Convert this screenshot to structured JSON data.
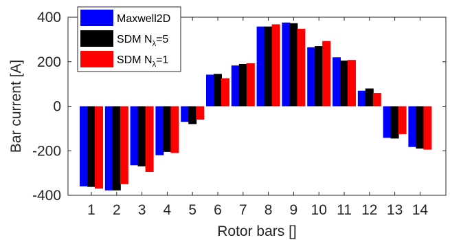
{
  "chart_data": {
    "type": "bar",
    "xlabel": "Rotor bars []",
    "ylabel": "Bar current [A]",
    "ylim": [
      -400,
      400
    ],
    "yticks": [
      -400,
      -200,
      0,
      200,
      400
    ],
    "categories": [
      "1",
      "2",
      "3",
      "4",
      "5",
      "6",
      "7",
      "8",
      "9",
      "10",
      "11",
      "12",
      "13",
      "14"
    ],
    "legend_position": "top-left",
    "grid": false,
    "series": [
      {
        "name": "Maxwell2D",
        "legend_main": "Maxwell2D",
        "legend_sub": "",
        "legend_tail": "",
        "color": "#0000ff",
        "values": [
          -360,
          -378,
          -265,
          -220,
          -70,
          142,
          183,
          358,
          376,
          265,
          220,
          70,
          -142,
          -183
        ]
      },
      {
        "name": "SDM N_λ=5",
        "legend_main": "SDM N",
        "legend_sub": "λ",
        "legend_tail": "=5",
        "color": "#000000",
        "values": [
          -362,
          -378,
          -270,
          -205,
          -80,
          145,
          190,
          358,
          373,
          270,
          205,
          80,
          -145,
          -190
        ]
      },
      {
        "name": "SDM N_λ=1",
        "legend_main": "SDM N",
        "legend_sub": "λ",
        "legend_tail": "=1",
        "color": "#ff0000",
        "values": [
          -370,
          -350,
          -295,
          -210,
          -60,
          125,
          193,
          368,
          348,
          293,
          208,
          60,
          -125,
          -195
        ]
      }
    ]
  }
}
